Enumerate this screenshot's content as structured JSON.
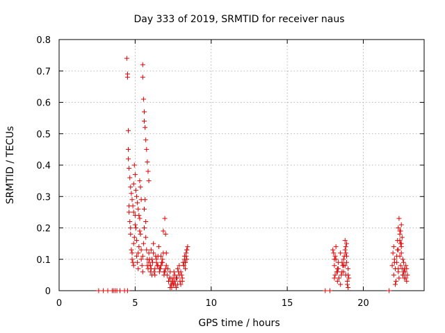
{
  "chart_data": {
    "type": "scatter",
    "title": "Day 333 of 2019, SRMTID for receiver naus",
    "xlabel": "GPS time / hours",
    "ylabel": "SRMTID / TECUs",
    "xlim": [
      0,
      24
    ],
    "ylim": [
      0,
      0.8
    ],
    "xticks": [
      0,
      5,
      10,
      15,
      20
    ],
    "xtick_labels": [
      "0",
      "5",
      "10",
      "15",
      "20"
    ],
    "yticks": [
      0,
      0.1,
      0.2,
      0.3,
      0.4,
      0.5,
      0.6,
      0.7,
      0.8
    ],
    "ytick_labels": [
      "0",
      "0.1",
      "0.2",
      "0.3",
      "0.4",
      "0.5",
      "0.6",
      "0.7",
      "0.8"
    ],
    "grid": true,
    "marker": "+",
    "color": "#e00000",
    "series": [
      {
        "name": "SRMTID",
        "x": [
          2.6,
          2.9,
          3.2,
          3.5,
          3.6,
          3.7,
          3.8,
          4.0,
          4.3,
          4.5,
          4.45,
          4.5,
          4.5,
          4.55,
          4.6,
          4.6,
          4.65,
          4.7,
          4.7,
          4.75,
          4.8,
          4.8,
          4.85,
          4.9,
          4.9,
          4.95,
          5.0,
          5.0,
          5.05,
          5.1,
          5.1,
          5.15,
          5.2,
          5.2,
          5.25,
          5.3,
          5.3,
          5.35,
          5.4,
          5.4,
          5.45,
          5.5,
          5.5,
          5.55,
          5.6,
          5.6,
          5.65,
          5.7,
          5.7,
          5.75,
          5.8,
          5.8,
          5.85,
          5.9,
          5.9,
          5.95,
          6.0,
          6.0,
          6.05,
          6.1,
          5.5,
          5.5,
          5.55,
          5.6,
          5.6,
          5.65,
          5.7,
          5.75,
          5.8,
          5.85,
          5.9,
          4.55,
          4.55,
          4.6,
          4.65,
          4.7,
          4.75,
          4.8,
          4.85,
          4.9,
          4.9,
          4.95,
          5.0,
          5.05,
          5.1,
          5.15,
          5.2,
          5.25,
          5.3,
          5.35,
          5.4,
          6.0,
          6.1,
          6.2,
          6.3,
          6.4,
          6.5,
          6.6,
          6.7,
          6.8,
          6.9,
          7.0,
          6.05,
          6.15,
          6.25,
          6.35,
          6.45,
          6.55,
          6.65,
          6.75,
          6.85,
          6.95,
          7.05,
          6.2,
          6.4,
          6.6,
          6.8,
          7.0,
          6.3,
          6.5,
          6.7,
          6.9,
          6.85,
          6.95,
          7.05,
          7.1,
          7.2,
          7.3,
          7.4,
          7.5,
          7.6,
          7.7,
          7.8,
          7.9,
          8.0,
          8.1,
          8.2,
          8.3,
          8.4,
          7.15,
          7.25,
          7.35,
          7.45,
          7.55,
          7.65,
          7.75,
          7.85,
          7.95,
          8.05,
          8.15,
          8.25,
          8.35,
          7.2,
          7.4,
          7.6,
          7.8,
          8.0,
          8.2,
          8.4,
          7.3,
          7.5,
          7.7,
          7.9,
          8.1,
          8.3,
          7.35,
          7.45,
          7.55,
          8.25,
          8.3,
          8.35,
          8.4,
          8.45,
          17.5,
          17.8,
          18.0,
          18.05,
          18.1,
          18.15,
          18.2,
          18.25,
          18.3,
          18.35,
          18.4,
          18.5,
          18.6,
          18.7,
          18.75,
          18.8,
          18.85,
          18.9,
          18.95,
          19.0,
          19.05,
          18.1,
          18.2,
          18.3,
          18.5,
          18.6,
          18.7,
          18.8,
          18.9,
          19.0,
          18.15,
          18.35,
          18.55,
          18.65,
          18.85,
          18.95,
          18.1,
          18.3,
          18.7,
          18.9,
          18.8,
          18.85,
          19.0,
          21.7,
          21.9,
          21.95,
          22.0,
          22.05,
          22.1,
          22.15,
          22.2,
          22.25,
          22.3,
          22.35,
          22.4,
          22.45,
          22.5,
          22.55,
          22.6,
          22.65,
          22.7,
          22.75,
          22.8,
          22.85,
          22.9,
          22.0,
          22.1,
          22.2,
          22.3,
          22.4,
          22.5,
          22.6,
          22.7,
          22.8,
          22.05,
          22.25,
          22.45,
          22.65,
          22.85,
          22.3,
          22.35,
          22.4,
          22.45,
          22.5,
          22.55,
          22.6,
          22.3,
          22.4,
          22.5
        ],
        "y": [
          0,
          0,
          0,
          0,
          0,
          0,
          0,
          0,
          0,
          0,
          0.74,
          0.69,
          0.68,
          0.51,
          0.27,
          0.25,
          0.22,
          0.2,
          0.18,
          0.13,
          0.12,
          0.1,
          0.09,
          0.08,
          0.15,
          0.17,
          0.21,
          0.24,
          0.2,
          0.16,
          0.11,
          0.09,
          0.07,
          0.12,
          0.14,
          0.19,
          0.23,
          0.18,
          0.13,
          0.1,
          0.08,
          0.06,
          0.11,
          0.15,
          0.2,
          0.26,
          0.29,
          0.22,
          0.17,
          0.13,
          0.1,
          0.08,
          0.07,
          0.09,
          0.12,
          0.1,
          0.08,
          0.06,
          0.07,
          0.05,
          0.72,
          0.68,
          0.61,
          0.57,
          0.54,
          0.52,
          0.48,
          0.45,
          0.41,
          0.38,
          0.35,
          0.45,
          0.42,
          0.39,
          0.36,
          0.33,
          0.31,
          0.29,
          0.27,
          0.25,
          0.34,
          0.4,
          0.37,
          0.32,
          0.3,
          0.28,
          0.26,
          0.24,
          0.35,
          0.33,
          0.29,
          0.08,
          0.1,
          0.12,
          0.07,
          0.09,
          0.11,
          0.06,
          0.08,
          0.1,
          0.05,
          0.07,
          0.13,
          0.09,
          0.06,
          0.11,
          0.08,
          0.14,
          0.07,
          0.09,
          0.12,
          0.06,
          0.08,
          0.15,
          0.1,
          0.07,
          0.09,
          0.18,
          0.05,
          0.08,
          0.11,
          0.06,
          0.19,
          0.23,
          0.12,
          0.05,
          0.03,
          0.01,
          0.02,
          0.04,
          0.03,
          0.01,
          0.02,
          0.05,
          0.06,
          0.04,
          0.08,
          0.07,
          0.1,
          0.07,
          0.04,
          0.02,
          0.03,
          0.06,
          0.02,
          0.04,
          0.06,
          0.03,
          0.05,
          0.09,
          0.11,
          0.12,
          0.03,
          0.01,
          0.05,
          0.07,
          0.02,
          0.08,
          0.13,
          0.06,
          0.02,
          0.04,
          0.08,
          0.03,
          0.09,
          0.04,
          0.03,
          0.02,
          0.1,
          0.09,
          0.11,
          0.13,
          0.14,
          0,
          0,
          0.13,
          0.12,
          0.08,
          0.05,
          0.1,
          0.06,
          0.03,
          0.07,
          0.04,
          0.12,
          0.09,
          0.06,
          0.11,
          0.08,
          0.05,
          0.09,
          0.03,
          0.07,
          0.04,
          0.1,
          0.14,
          0.07,
          0.02,
          0.06,
          0.1,
          0.13,
          0.15,
          0.05,
          0.11,
          0.09,
          0.05,
          0.08,
          0.12,
          0.02,
          0.04,
          0.06,
          0.08,
          0.11,
          0.16,
          0.14,
          0.01,
          0,
          0.08,
          0.12,
          0.05,
          0.1,
          0.07,
          0.03,
          0.09,
          0.13,
          0.06,
          0.04,
          0.11,
          0.08,
          0.15,
          0.07,
          0.05,
          0.09,
          0.04,
          0.06,
          0.08,
          0.03,
          0.05,
          0.14,
          0.02,
          0.11,
          0.07,
          0.18,
          0.12,
          0.05,
          0.07,
          0.04,
          0.09,
          0.16,
          0.19,
          0.06,
          0.07,
          0.2,
          0.23,
          0.19,
          0.15,
          0.21,
          0.17,
          0.1,
          0.13,
          0.16,
          0.14
        ]
      }
    ]
  }
}
